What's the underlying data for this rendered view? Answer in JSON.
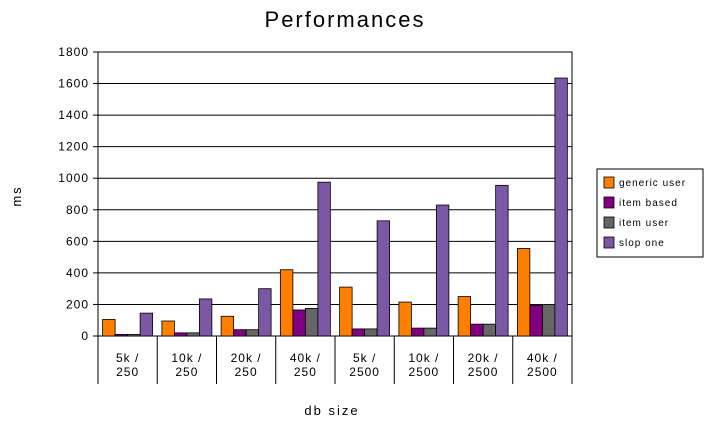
{
  "chart_data": {
    "type": "bar",
    "title": "Performances",
    "xlabel": "db size",
    "ylabel": "ms",
    "ylim": [
      0,
      1800
    ],
    "yticks": [
      0,
      200,
      400,
      600,
      800,
      1000,
      1200,
      1400,
      1600,
      1800
    ],
    "grid": true,
    "legend_position": "right",
    "categories": [
      [
        "5k /",
        "250"
      ],
      [
        "10k /",
        "250"
      ],
      [
        "20k /",
        "250"
      ],
      [
        "40k /",
        "250"
      ],
      [
        "5k /",
        "2500"
      ],
      [
        "10k /",
        "2500"
      ],
      [
        "20k /",
        "2500"
      ],
      [
        "40k /",
        "2500"
      ]
    ],
    "series": [
      {
        "name": "generic user",
        "color": "#FF7F00",
        "values": [
          105,
          95,
          125,
          420,
          310,
          215,
          250,
          555
        ]
      },
      {
        "name": "item based",
        "color": "#800080",
        "values": [
          10,
          20,
          40,
          165,
          45,
          50,
          75,
          195
        ]
      },
      {
        "name": "item user",
        "color": "#666666",
        "values": [
          10,
          20,
          40,
          175,
          45,
          50,
          75,
          200
        ]
      },
      {
        "name": "slop one",
        "color": "#7B57A6",
        "values": [
          145,
          235,
          300,
          975,
          730,
          830,
          955,
          1635
        ]
      }
    ]
  }
}
